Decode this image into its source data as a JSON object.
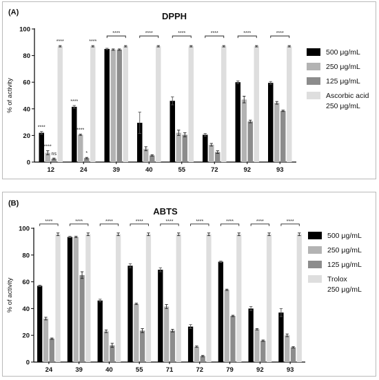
{
  "chart_data": [
    {
      "type": "bar",
      "panel_label": "(A)",
      "title": "DPPH",
      "ylabel": "% of activity",
      "ylim": [
        0,
        100
      ],
      "yticks": [
        "0",
        "20",
        "40",
        "60",
        "80",
        "100"
      ],
      "categories": [
        "12",
        "24",
        "39",
        "40",
        "55",
        "72",
        "92",
        "93"
      ],
      "series": [
        {
          "name": "500 μg/mL",
          "color": "#000000",
          "values": [
            22,
            41.5,
            85,
            29.5,
            46,
            20.5,
            60,
            59.5
          ],
          "errors": [
            1,
            1,
            0.5,
            8,
            3,
            1,
            1,
            1
          ]
        },
        {
          "name": "250 μg/mL",
          "color": "#b3b3b3",
          "values": [
            7,
            20.5,
            84.5,
            10,
            22,
            13,
            47,
            44.5
          ],
          "errors": [
            1.5,
            0.5,
            0.5,
            1.5,
            2,
            1,
            2.5,
            1
          ]
        },
        {
          "name": "125 μg/mL",
          "color": "#8c8c8c",
          "values": [
            2.5,
            3,
            84.5,
            5,
            20.5,
            7.5,
            30.5,
            38.5
          ],
          "errors": [
            0.5,
            0.5,
            0.5,
            0.5,
            1.5,
            1,
            1,
            0.5
          ]
        },
        {
          "name": "Ascorbic acid 250 μg/mL",
          "color": "#dedede",
          "values": [
            87,
            87,
            87,
            87,
            87,
            87,
            87,
            87
          ],
          "errors": [
            0.5,
            0.5,
            0.5,
            0.5,
            0.5,
            0.5,
            0.5,
            0.5
          ]
        }
      ],
      "legend": [
        "500 μg/mL",
        "250 μg/mL",
        "125 μg/mL",
        "Ascorbic acid",
        "250 μg/mL"
      ],
      "annotations": [
        {
          "category": 0,
          "series": 0,
          "text": "****"
        },
        {
          "category": 0,
          "series": 1,
          "text": "****"
        },
        {
          "category": 0,
          "series": 2,
          "text": "ns"
        },
        {
          "category": 0,
          "series": 3,
          "text": "****"
        },
        {
          "category": 1,
          "series": 0,
          "text": "****"
        },
        {
          "category": 1,
          "series": 1,
          "text": "****"
        },
        {
          "category": 1,
          "series": 2,
          "text": "*"
        },
        {
          "category": 1,
          "series": 3,
          "text": "****"
        }
      ],
      "brackets": [
        {
          "category": 2,
          "text": "****"
        },
        {
          "category": 3,
          "text": "****"
        },
        {
          "category": 4,
          "text": "****"
        },
        {
          "category": 5,
          "text": "****"
        },
        {
          "category": 6,
          "text": "****"
        },
        {
          "category": 7,
          "text": "****"
        }
      ]
    },
    {
      "type": "bar",
      "panel_label": "(B)",
      "title": "ABTS",
      "ylabel": "% of activity",
      "ylim": [
        0,
        100
      ],
      "yticks": [
        "0",
        "20",
        "40",
        "60",
        "80",
        "100"
      ],
      "categories": [
        "24",
        "39",
        "40",
        "55",
        "71",
        "72",
        "79",
        "92",
        "93"
      ],
      "series": [
        {
          "name": "500 μg/mL",
          "color": "#000000",
          "values": [
            57,
            93.5,
            46,
            72,
            69,
            26.5,
            75,
            40,
            37
          ],
          "errors": [
            0.5,
            0.5,
            1,
            1.5,
            1.5,
            1.5,
            0.5,
            1.5,
            3
          ]
        },
        {
          "name": "250 μg/mL",
          "color": "#b3b3b3",
          "values": [
            32.5,
            93.5,
            23,
            43.5,
            41.5,
            11.5,
            54,
            24.5,
            20
          ],
          "errors": [
            1,
            0.5,
            1,
            0.5,
            1.5,
            0.5,
            0.5,
            0.5,
            1
          ]
        },
        {
          "name": "125 μg/mL",
          "color": "#8c8c8c",
          "values": [
            17.5,
            65,
            12.5,
            23.5,
            23.5,
            4.5,
            34.5,
            16,
            11
          ],
          "errors": [
            0.5,
            2.5,
            1.5,
            1.5,
            1,
            0.5,
            0.5,
            0.5,
            0.5
          ]
        },
        {
          "name": "Trolox 250 μg/mL",
          "color": "#dedede",
          "values": [
            95.5,
            95.5,
            95.5,
            95.5,
            95.5,
            95.5,
            95.5,
            95.5,
            95.5
          ],
          "errors": [
            1,
            1,
            1,
            1,
            1,
            1,
            1,
            1,
            1
          ]
        }
      ],
      "legend": [
        "500 μg/mL",
        "250 μg/mL",
        "125 μg/mL",
        "Trolox",
        "250 μg/mL"
      ],
      "brackets": [
        {
          "category": 0,
          "text": "****"
        },
        {
          "category": 1,
          "text": "****"
        },
        {
          "category": 2,
          "text": "****"
        },
        {
          "category": 3,
          "text": "****"
        },
        {
          "category": 4,
          "text": "****"
        },
        {
          "category": 5,
          "text": "****"
        },
        {
          "category": 6,
          "text": "****"
        },
        {
          "category": 7,
          "text": "****"
        },
        {
          "category": 8,
          "text": "****"
        }
      ]
    }
  ]
}
